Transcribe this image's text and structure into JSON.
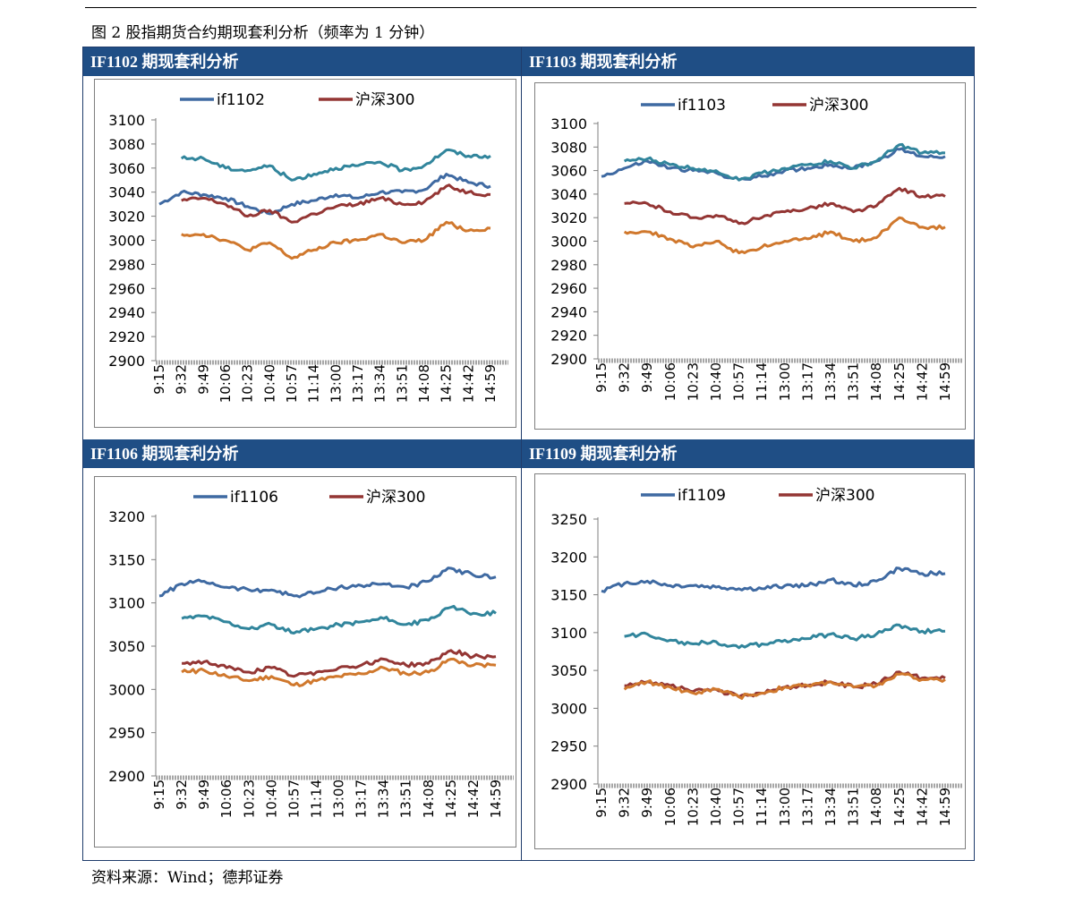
{
  "caption": "图 2 股指期货合约期现套利分析（频率为 1 分钟）",
  "source": "资料来源：Wind；德邦证券",
  "colors": {
    "header_bg": "#1f4e85",
    "contract": "#3f6aa2",
    "hs300": "#943634",
    "teal": "#31859c",
    "orange": "#d0782d",
    "baseline": "#a6a6a6"
  },
  "panels": [
    {
      "header": "IF1102 期现套利分析",
      "legend": [
        "if1102",
        "沪深300"
      ]
    },
    {
      "header": "IF1103 期现套利分析",
      "legend": [
        "if1103",
        "沪深300"
      ]
    },
    {
      "header": "IF1106 期现套利分析",
      "legend": [
        "if1106",
        "沪深300"
      ]
    },
    {
      "header": "IF1109 期现套利分析",
      "legend": [
        "if1109",
        "沪深300"
      ]
    }
  ],
  "chart_data": [
    {
      "type": "line",
      "x": [
        "9:15",
        "9:32",
        "9:49",
        "10:06",
        "10:23",
        "10:40",
        "10:57",
        "11:14",
        "13:00",
        "13:17",
        "13:34",
        "13:51",
        "14:08",
        "14:25",
        "14:42",
        "14:59"
      ],
      "yticks": [
        2900,
        2920,
        2940,
        2960,
        2980,
        3000,
        3020,
        3040,
        3060,
        3080,
        3100
      ],
      "ylim": [
        2900,
        3100
      ],
      "grid": false,
      "legend_position": "top",
      "series": [
        {
          "name": "if1102",
          "color_key": "contract",
          "values": [
            3030,
            3040,
            3038,
            3035,
            3028,
            3022,
            3030,
            3033,
            3038,
            3035,
            3040,
            3040,
            3042,
            3055,
            3048,
            3045
          ]
        },
        {
          "name": "沪深300",
          "color_key": "hs300",
          "values": [
            null,
            3033,
            3035,
            3030,
            3020,
            3025,
            3015,
            3022,
            3028,
            3030,
            3035,
            3030,
            3032,
            3045,
            3040,
            3038
          ]
        },
        {
          "name": "",
          "color_key": "teal",
          "values": [
            null,
            3068,
            3068,
            3060,
            3058,
            3062,
            3050,
            3055,
            3060,
            3062,
            3065,
            3058,
            3062,
            3075,
            3070,
            3070
          ]
        },
        {
          "name": "",
          "color_key": "orange",
          "values": [
            null,
            3005,
            3005,
            3000,
            2992,
            2998,
            2985,
            2992,
            2998,
            3000,
            3005,
            2998,
            3000,
            3015,
            3008,
            3010
          ]
        }
      ]
    },
    {
      "type": "line",
      "x": [
        "9:15",
        "9:32",
        "9:49",
        "10:06",
        "10:23",
        "10:40",
        "10:57",
        "11:14",
        "13:00",
        "13:17",
        "13:34",
        "13:51",
        "14:08",
        "14:25",
        "14:42",
        "14:59"
      ],
      "yticks": [
        2900,
        2920,
        2940,
        2960,
        2980,
        3000,
        3020,
        3040,
        3060,
        3080,
        3100
      ],
      "ylim": [
        2900,
        3100
      ],
      "grid": false,
      "legend_position": "top",
      "series": [
        {
          "name": "if1103",
          "color_key": "contract",
          "values": [
            3055,
            3062,
            3068,
            3062,
            3060,
            3058,
            3052,
            3055,
            3060,
            3062,
            3065,
            3062,
            3068,
            3078,
            3072,
            3072
          ]
        },
        {
          "name": "沪深300",
          "color_key": "hs300",
          "values": [
            null,
            3032,
            3032,
            3025,
            3020,
            3022,
            3015,
            3020,
            3025,
            3028,
            3032,
            3025,
            3030,
            3045,
            3038,
            3038
          ]
        },
        {
          "name": "",
          "color_key": "teal",
          "values": [
            null,
            3068,
            3070,
            3065,
            3062,
            3060,
            3052,
            3058,
            3062,
            3065,
            3068,
            3062,
            3068,
            3082,
            3075,
            3075
          ]
        },
        {
          "name": "",
          "color_key": "orange",
          "values": [
            null,
            3008,
            3008,
            3002,
            2995,
            3000,
            2990,
            2995,
            3000,
            3002,
            3008,
            3000,
            3003,
            3020,
            3012,
            3012
          ]
        }
      ]
    },
    {
      "type": "line",
      "x": [
        "9:15",
        "9:32",
        "9:49",
        "10:06",
        "10:23",
        "10:40",
        "10:57",
        "11:14",
        "13:00",
        "13:17",
        "13:34",
        "13:51",
        "14:08",
        "14:25",
        "14:42",
        "14:59"
      ],
      "yticks": [
        2900,
        2950,
        3000,
        3050,
        3100,
        3150,
        3200
      ],
      "ylim": [
        2900,
        3200
      ],
      "grid": false,
      "legend_position": "top",
      "series": [
        {
          "name": "if1106",
          "color_key": "contract",
          "values": [
            3108,
            3122,
            3125,
            3118,
            3115,
            3115,
            3108,
            3112,
            3118,
            3120,
            3122,
            3118,
            3125,
            3140,
            3132,
            3130
          ]
        },
        {
          "name": "沪深300",
          "color_key": "hs300",
          "values": [
            null,
            3030,
            3032,
            3025,
            3020,
            3025,
            3015,
            3020,
            3025,
            3028,
            3035,
            3028,
            3030,
            3045,
            3038,
            3038
          ]
        },
        {
          "name": "",
          "color_key": "teal",
          "values": [
            null,
            3082,
            3085,
            3078,
            3070,
            3075,
            3065,
            3070,
            3075,
            3078,
            3082,
            3075,
            3080,
            3095,
            3088,
            3088
          ]
        },
        {
          "name": "",
          "color_key": "orange",
          "values": [
            null,
            3020,
            3022,
            3015,
            3010,
            3015,
            3005,
            3010,
            3015,
            3018,
            3025,
            3018,
            3020,
            3035,
            3028,
            3028
          ]
        }
      ]
    },
    {
      "type": "line",
      "x": [
        "9:15",
        "9:32",
        "9:49",
        "10:06",
        "10:23",
        "10:40",
        "10:57",
        "11:14",
        "13:00",
        "13:17",
        "13:34",
        "13:51",
        "14:08",
        "14:25",
        "14:42",
        "14:59"
      ],
      "yticks": [
        2900,
        2950,
        3000,
        3050,
        3100,
        3150,
        3200,
        3250
      ],
      "ylim": [
        2900,
        3250
      ],
      "grid": false,
      "legend_position": "top",
      "series": [
        {
          "name": "if1109",
          "color_key": "contract",
          "values": [
            3155,
            3165,
            3168,
            3162,
            3162,
            3160,
            3158,
            3158,
            3162,
            3162,
            3170,
            3162,
            3168,
            3185,
            3178,
            3178
          ]
        },
        {
          "name": "沪深300",
          "color_key": "hs300",
          "values": [
            null,
            3030,
            3035,
            3030,
            3022,
            3025,
            3015,
            3020,
            3028,
            3030,
            3035,
            3028,
            3032,
            3048,
            3040,
            3040
          ]
        },
        {
          "name": "",
          "color_key": "teal",
          "values": [
            null,
            3095,
            3098,
            3090,
            3085,
            3088,
            3080,
            3085,
            3090,
            3092,
            3098,
            3092,
            3098,
            3110,
            3102,
            3102
          ]
        },
        {
          "name": "",
          "color_key": "orange",
          "values": [
            null,
            3025,
            3035,
            3028,
            3020,
            3025,
            3015,
            3020,
            3028,
            3030,
            3035,
            3028,
            3030,
            3045,
            3038,
            3038
          ]
        }
      ]
    }
  ]
}
